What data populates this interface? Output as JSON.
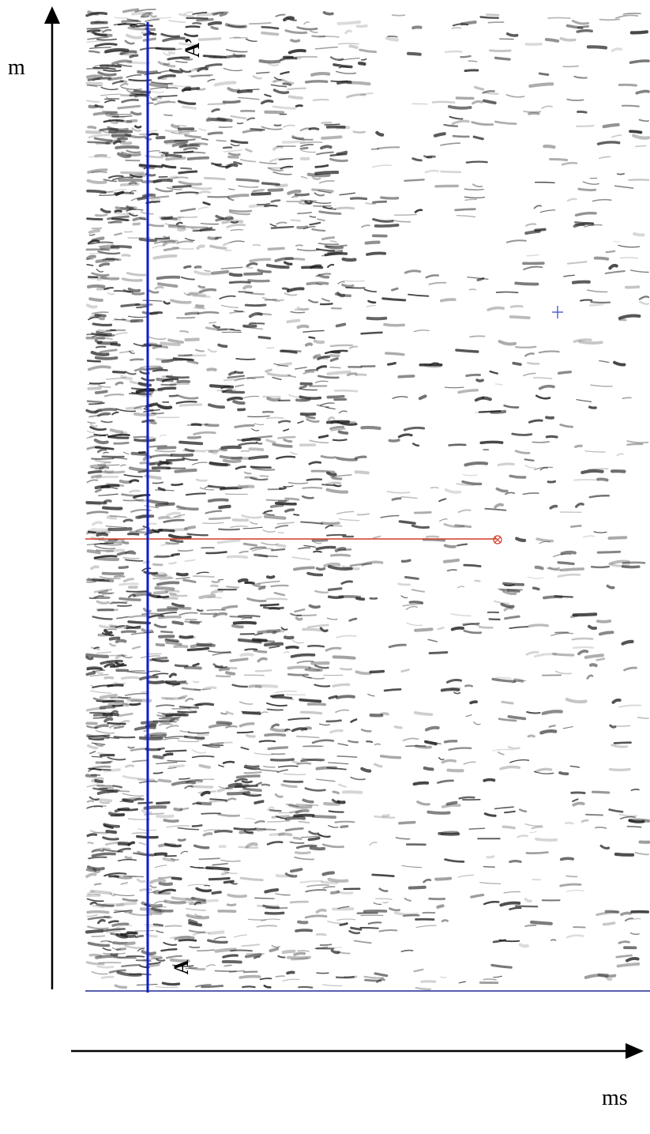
{
  "axes": {
    "y_label": "m",
    "x_label": "ms"
  },
  "markers": {
    "bottom": "A",
    "top": "A’"
  },
  "colors": {
    "background": "#ffffff",
    "texture": "#1e1e1e",
    "vertical_profile_line": "#0a1ed2",
    "horizontal_line": "#d23c28",
    "crosshair": "#3c50c8",
    "baseline": "#1e2896",
    "axis": "#000000"
  },
  "icons": {
    "crosshair": "plus-crosshair-icon",
    "horizontal_line_end": "circled-x-icon"
  }
}
